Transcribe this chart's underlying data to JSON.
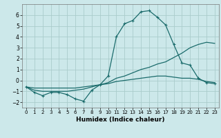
{
  "xlabel": "Humidex (Indice chaleur)",
  "ylabel": "",
  "background_color": "#cce8ea",
  "grid_color": "#aacccc",
  "line_color": "#1a6b6b",
  "xlim": [
    -0.5,
    23.5
  ],
  "ylim": [
    -2.5,
    7.0
  ],
  "yticks": [
    -2,
    -1,
    0,
    1,
    2,
    3,
    4,
    5,
    6
  ],
  "xticks": [
    0,
    1,
    2,
    3,
    4,
    5,
    6,
    7,
    8,
    9,
    10,
    11,
    12,
    13,
    14,
    15,
    16,
    17,
    18,
    19,
    20,
    21,
    22,
    23
  ],
  "series1_x": [
    0,
    1,
    2,
    3,
    4,
    5,
    6,
    7,
    8,
    9,
    10,
    11,
    12,
    13,
    14,
    15,
    16,
    17,
    18,
    19,
    20,
    21,
    22,
    23
  ],
  "series1_y": [
    -0.6,
    -1.1,
    -1.4,
    -1.1,
    -1.1,
    -1.3,
    -1.7,
    -1.9,
    -0.9,
    -0.4,
    0.4,
    4.0,
    5.2,
    5.5,
    6.3,
    6.4,
    5.8,
    5.1,
    3.3,
    1.6,
    1.4,
    0.2,
    -0.2,
    -0.3
  ],
  "series2_x": [
    0,
    1,
    2,
    3,
    4,
    5,
    6,
    7,
    8,
    9,
    10,
    11,
    12,
    13,
    14,
    15,
    16,
    17,
    18,
    19,
    20,
    21,
    22,
    23
  ],
  "series2_y": [
    -0.6,
    -0.9,
    -1.0,
    -1.0,
    -1.0,
    -1.0,
    -0.9,
    -0.8,
    -0.6,
    -0.4,
    -0.2,
    0.2,
    0.4,
    0.7,
    1.0,
    1.2,
    1.5,
    1.7,
    2.1,
    2.5,
    3.0,
    3.3,
    3.5,
    3.4
  ],
  "series3_x": [
    0,
    1,
    2,
    3,
    4,
    5,
    6,
    7,
    8,
    9,
    10,
    11,
    12,
    13,
    14,
    15,
    16,
    17,
    18,
    19,
    20,
    21,
    22,
    23
  ],
  "series3_y": [
    -0.6,
    -0.7,
    -0.7,
    -0.7,
    -0.7,
    -0.7,
    -0.7,
    -0.6,
    -0.5,
    -0.4,
    -0.3,
    -0.1,
    0.0,
    0.1,
    0.2,
    0.3,
    0.4,
    0.4,
    0.3,
    0.2,
    0.2,
    0.1,
    -0.1,
    -0.2
  ],
  "xlabel_fontsize": 6.5,
  "tick_fontsize": 5.5
}
